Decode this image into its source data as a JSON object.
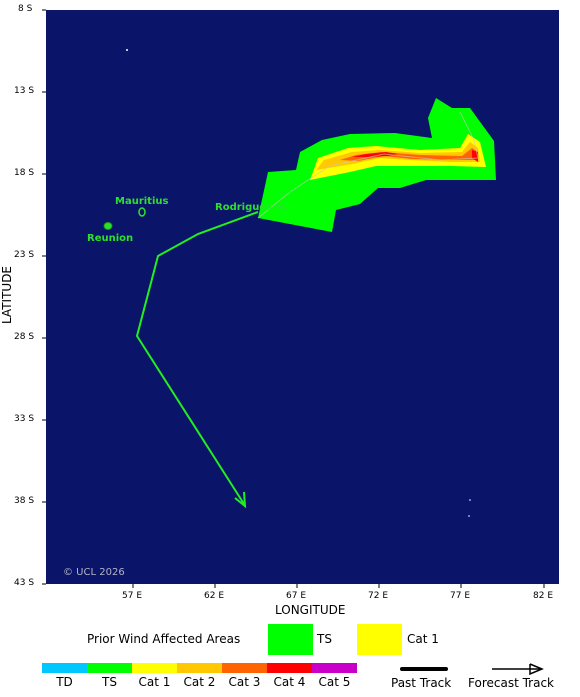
{
  "map": {
    "ocean_color": "#0a1468",
    "land_color": "#2ee02e",
    "copyright": "© UCL 2026",
    "x_axis_label": "LONGITUDE",
    "y_axis_label": "LATITUDE",
    "lon_ticks": [
      "57 E",
      "62 E",
      "67 E",
      "72 E",
      "77 E",
      "82 E"
    ],
    "lat_ticks": [
      "8 S",
      "13 S",
      "18 S",
      "23 S",
      "28 S",
      "33 S",
      "38 S",
      "43 S"
    ],
    "places": {
      "mauritius": "Mauritius",
      "reunion": "Reunion",
      "rodrigues": "Rodrigues Is."
    }
  },
  "legend": {
    "prior_title": "Prior Wind Affected Areas",
    "prior_items": [
      {
        "label": "TS",
        "color": "#00ff00"
      },
      {
        "label": "Cat 1",
        "color": "#ffff00"
      }
    ],
    "scale": [
      {
        "label": "TD",
        "color": "#00c8ff"
      },
      {
        "label": "TS",
        "color": "#00ff00"
      },
      {
        "label": "Cat 1",
        "color": "#ffff00"
      },
      {
        "label": "Cat 2",
        "color": "#ffc800"
      },
      {
        "label": "Cat 3",
        "color": "#ff6400"
      },
      {
        "label": "Cat 4",
        "color": "#ff0000"
      },
      {
        "label": "Cat 5",
        "color": "#c800c8"
      }
    ],
    "past_track": "Past Track",
    "forecast_track": "Forecast Track"
  }
}
